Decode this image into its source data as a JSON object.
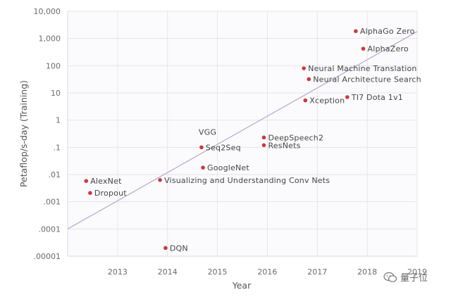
{
  "chart_data": {
    "type": "scatter",
    "xlabel": "Year",
    "ylabel": "Petaflop/s-day (Training)",
    "y_scale": "log",
    "xlim": [
      2012.0,
      2019.0
    ],
    "ylim": [
      1e-05,
      10000
    ],
    "x_ticks": [
      "2013",
      "2014",
      "2015",
      "2016",
      "2017",
      "2018",
      "2019"
    ],
    "y_ticks": [
      {
        "value": 10000,
        "label": "10,000"
      },
      {
        "value": 1000,
        "label": "1,000"
      },
      {
        "value": 100,
        "label": "100"
      },
      {
        "value": 10,
        "label": "10"
      },
      {
        "value": 1,
        "label": "1"
      },
      {
        "value": 0.1,
        "label": ".1"
      },
      {
        "value": 0.01,
        "label": ".01"
      },
      {
        "value": 0.001,
        "label": ".001"
      },
      {
        "value": 0.0001,
        "label": ".0001"
      },
      {
        "value": 1e-05,
        "label": ".00001"
      }
    ],
    "grid": true,
    "point_color": "#cc3a3a",
    "trend_color": "#b8a6cf",
    "trend_line": [
      [
        2012.0,
        0.0001
      ],
      [
        2019.0,
        1800
      ]
    ],
    "points": [
      {
        "label": "AlexNet",
        "x": 2012.37,
        "y": 0.0058
      },
      {
        "label": "Dropout",
        "x": 2012.45,
        "y": 0.0021
      },
      {
        "label": "Visualizing and Understanding Conv Nets",
        "x": 2013.85,
        "y": 0.0063
      },
      {
        "label": "DQN",
        "x": 2013.96,
        "y": 2e-05
      },
      {
        "label": "VGG",
        "x": 2014.68,
        "y": 0.1,
        "label_above": true
      },
      {
        "label": "Seq2Seq",
        "x": 2014.68,
        "y": 0.1
      },
      {
        "label": "GoogleNet",
        "x": 2014.71,
        "y": 0.018
      },
      {
        "label": "DeepSpeech2",
        "x": 2015.93,
        "y": 0.23
      },
      {
        "label": "ResNets",
        "x": 2015.93,
        "y": 0.12
      },
      {
        "label": "Neural Machine Translation",
        "x": 2016.73,
        "y": 80
      },
      {
        "label": "Neural Architecture Search",
        "x": 2016.83,
        "y": 32
      },
      {
        "label": "Xception",
        "x": 2016.76,
        "y": 5.3
      },
      {
        "label": "TI7 Dota 1v1",
        "x": 2017.6,
        "y": 7
      },
      {
        "label": "AlphaGo Zero",
        "x": 2017.77,
        "y": 1860
      },
      {
        "label": "AlphaZero",
        "x": 2017.92,
        "y": 420
      }
    ]
  },
  "watermark": {
    "text": "量子位",
    "icon": "wechat-icon"
  }
}
